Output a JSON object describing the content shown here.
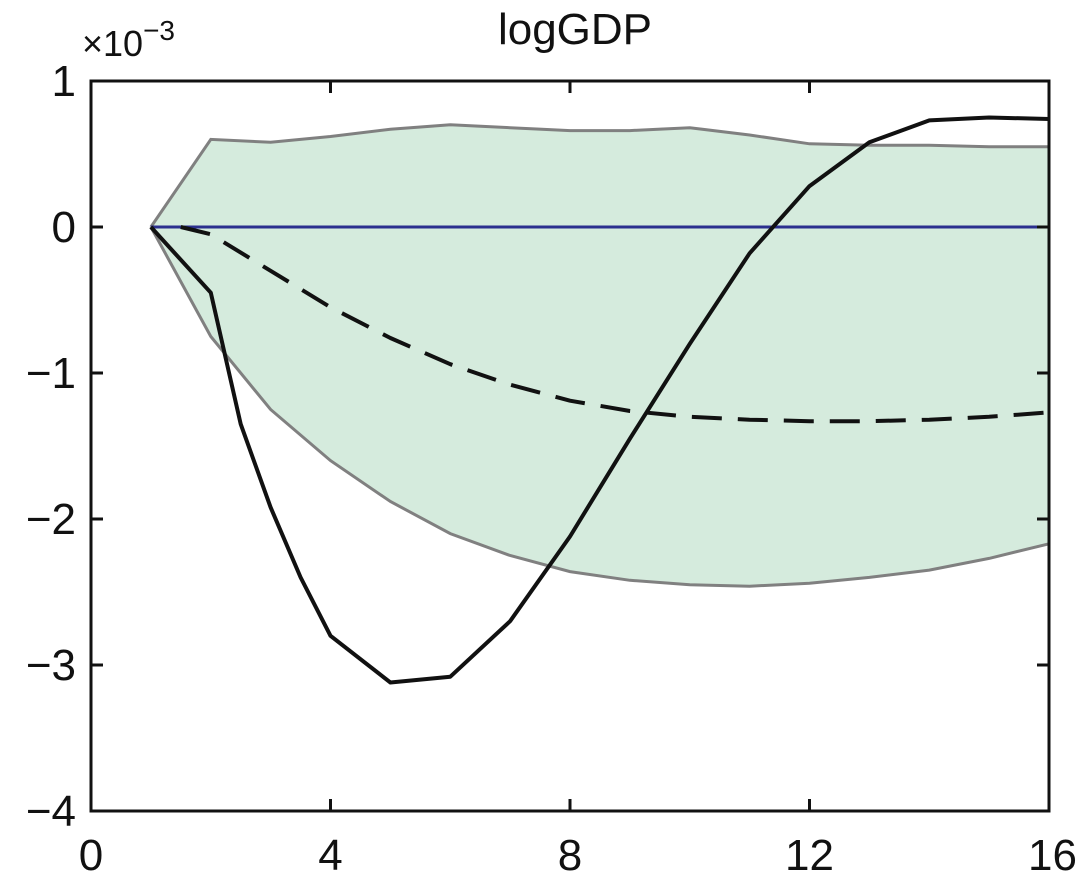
{
  "chart_data": {
    "type": "line",
    "title": "logGDP",
    "y_multiplier_label": "×10",
    "y_multiplier_exponent": "−3",
    "xlabel": "",
    "ylabel": "",
    "xlim": [
      0,
      16
    ],
    "ylim": [
      -4,
      1
    ],
    "x_ticks": [
      0,
      4,
      8,
      12,
      16
    ],
    "x_tick_labels": [
      "0",
      "4",
      "8",
      "12",
      "16"
    ],
    "y_ticks": [
      1,
      0,
      -1,
      -2,
      -3,
      -4
    ],
    "y_tick_labels": [
      "1",
      "0",
      "−1",
      "−2",
      "−3",
      "−4"
    ],
    "grid": false,
    "colors": {
      "band_fill": "#d5ebdd",
      "band_edge": "#808080",
      "zero_line": "#2b2f8e",
      "series": "#111111"
    },
    "band": {
      "x": [
        1,
        2,
        3,
        4,
        5,
        6,
        7,
        8,
        9,
        10,
        11,
        12,
        13,
        14,
        15,
        16
      ],
      "upper": [
        0,
        0.6,
        0.58,
        0.62,
        0.67,
        0.7,
        0.68,
        0.66,
        0.66,
        0.68,
        0.63,
        0.57,
        0.56,
        0.56,
        0.55,
        0.55
      ],
      "lower": [
        0,
        -0.75,
        -1.25,
        -1.6,
        -1.88,
        -2.1,
        -2.25,
        -2.36,
        -2.42,
        -2.45,
        -2.46,
        -2.44,
        -2.4,
        -2.35,
        -2.27,
        -2.17
      ]
    },
    "zero_line": {
      "y": 0,
      "x_start": 1,
      "x_end": 16
    },
    "series": [
      {
        "style": "solid",
        "x": [
          1,
          2,
          2.5,
          3,
          3.5,
          4,
          5,
          6,
          7,
          8,
          9,
          10,
          11,
          12,
          13,
          14,
          15,
          16
        ],
        "values": [
          0,
          -0.45,
          -1.35,
          -1.92,
          -2.4,
          -2.8,
          -3.12,
          -3.08,
          -2.7,
          -2.12,
          -1.45,
          -0.8,
          -0.18,
          0.28,
          0.58,
          0.73,
          0.75,
          0.74
        ]
      },
      {
        "style": "dashed",
        "x": [
          1.5,
          2,
          3,
          4,
          5,
          6,
          7,
          8,
          9,
          10,
          11,
          12,
          13,
          14,
          15,
          16
        ],
        "values": [
          0,
          -0.05,
          -0.3,
          -0.55,
          -0.76,
          -0.94,
          -1.08,
          -1.19,
          -1.26,
          -1.3,
          -1.32,
          -1.33,
          -1.33,
          -1.32,
          -1.3,
          -1.27
        ]
      }
    ]
  }
}
